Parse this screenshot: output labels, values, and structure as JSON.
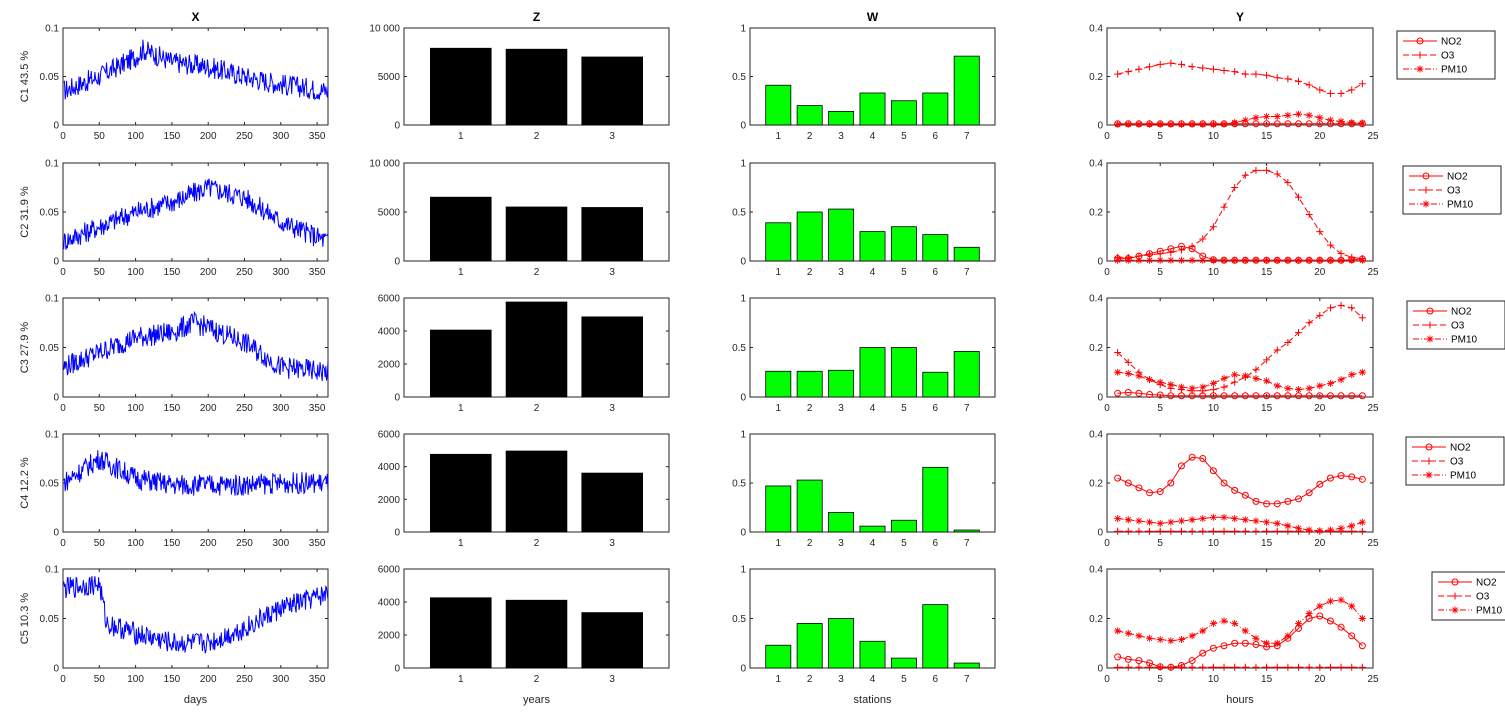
{
  "colors": {
    "time_series": "#0000ff",
    "years_bars": "#000000",
    "stations_bars": "#00ff00",
    "pollutants": "#ff0000"
  },
  "columns": [
    {
      "title": "X",
      "xlabel": "days"
    },
    {
      "title": "Z",
      "xlabel": "years"
    },
    {
      "title": "W",
      "xlabel": "stations"
    },
    {
      "title": "Y",
      "xlabel": "hours"
    }
  ],
  "rows": [
    {
      "ylabel": "C1 43.5 %"
    },
    {
      "ylabel": "C2 31.9 %"
    },
    {
      "ylabel": "C3 27.9 %"
    },
    {
      "ylabel": "C4 12.2 %"
    },
    {
      "ylabel": "C5 10.3 %"
    }
  ],
  "legend_labels": [
    "NO2",
    "O3",
    "PM10"
  ],
  "chart_data": [
    {
      "type": "line",
      "column": "X",
      "xlim": [
        0,
        365
      ],
      "xticks": [
        0,
        50,
        100,
        150,
        200,
        250,
        300,
        350
      ],
      "ylim": [
        0,
        0.1
      ],
      "yticks": [
        "0",
        "0.05",
        "0.1"
      ],
      "series_profile": [
        {
          "row": "C1",
          "x": [
            0,
            50,
            100,
            110,
            150,
            200,
            250,
            300,
            365
          ],
          "y": [
            0.035,
            0.05,
            0.07,
            0.078,
            0.065,
            0.06,
            0.05,
            0.042,
            0.035
          ]
        },
        {
          "row": "C2",
          "x": [
            0,
            50,
            100,
            150,
            200,
            250,
            300,
            365
          ],
          "y": [
            0.02,
            0.035,
            0.05,
            0.06,
            0.075,
            0.065,
            0.04,
            0.02
          ]
        },
        {
          "row": "C3",
          "x": [
            0,
            50,
            100,
            150,
            180,
            200,
            250,
            300,
            365
          ],
          "y": [
            0.03,
            0.045,
            0.06,
            0.065,
            0.075,
            0.07,
            0.055,
            0.03,
            0.025
          ]
        },
        {
          "row": "C4",
          "x": [
            0,
            50,
            100,
            150,
            200,
            250,
            300,
            365
          ],
          "y": [
            0.05,
            0.075,
            0.055,
            0.048,
            0.048,
            0.048,
            0.05,
            0.05
          ]
        },
        {
          "row": "C5",
          "x": [
            0,
            50,
            60,
            100,
            150,
            200,
            250,
            300,
            365
          ],
          "y": [
            0.08,
            0.085,
            0.045,
            0.035,
            0.025,
            0.025,
            0.04,
            0.06,
            0.075
          ]
        }
      ]
    },
    {
      "type": "bar",
      "column": "Z",
      "categories": [
        "1",
        "2",
        "3"
      ],
      "rows": [
        {
          "row": "C1",
          "ylim": [
            0,
            10000
          ],
          "yticks": [
            "0",
            "5000",
            "10 000"
          ],
          "values": [
            7900,
            7800,
            7000
          ]
        },
        {
          "row": "C2",
          "ylim": [
            0,
            10000
          ],
          "yticks": [
            "0",
            "5000",
            "10 000"
          ],
          "values": [
            6500,
            5500,
            5450
          ]
        },
        {
          "row": "C3",
          "ylim": [
            0,
            6000
          ],
          "yticks": [
            "0",
            "2000",
            "4000",
            "6000"
          ],
          "values": [
            4050,
            5750,
            4850
          ]
        },
        {
          "row": "C4",
          "ylim": [
            0,
            6000
          ],
          "yticks": [
            "0",
            "2000",
            "4000",
            "6000"
          ],
          "values": [
            4750,
            4950,
            3600
          ]
        },
        {
          "row": "C5",
          "ylim": [
            0,
            6000
          ],
          "yticks": [
            "0",
            "2000",
            "4000",
            "6000"
          ],
          "values": [
            4250,
            4100,
            3350
          ]
        }
      ]
    },
    {
      "type": "bar",
      "column": "W",
      "categories": [
        "1",
        "2",
        "3",
        "4",
        "5",
        "6",
        "7"
      ],
      "ylim": [
        0,
        1
      ],
      "yticks": [
        "0",
        "0.5",
        "1"
      ],
      "rows": [
        {
          "row": "C1",
          "values": [
            0.41,
            0.2,
            0.14,
            0.33,
            0.25,
            0.33,
            0.71
          ]
        },
        {
          "row": "C2",
          "values": [
            0.39,
            0.5,
            0.53,
            0.3,
            0.35,
            0.27,
            0.14
          ]
        },
        {
          "row": "C3",
          "values": [
            0.26,
            0.26,
            0.27,
            0.5,
            0.5,
            0.25,
            0.46
          ]
        },
        {
          "row": "C4",
          "values": [
            0.47,
            0.53,
            0.2,
            0.06,
            0.12,
            0.66,
            0.02
          ]
        },
        {
          "row": "C5",
          "values": [
            0.23,
            0.45,
            0.5,
            0.27,
            0.1,
            0.64,
            0.05
          ]
        }
      ]
    },
    {
      "type": "line",
      "column": "Y",
      "xlim": [
        0,
        25
      ],
      "xticks": [
        0,
        5,
        10,
        15,
        20,
        25
      ],
      "ylim": [
        0,
        0.4
      ],
      "yticks": [
        "0",
        "0.2",
        "0.4"
      ],
      "x": [
        1,
        2,
        3,
        4,
        5,
        6,
        7,
        8,
        9,
        10,
        11,
        12,
        13,
        14,
        15,
        16,
        17,
        18,
        19,
        20,
        21,
        22,
        23,
        24
      ],
      "rows": [
        {
          "row": "C1",
          "legend_position": "outside-top-right",
          "series": [
            {
              "name": "NO2",
              "values": [
                0.005,
                0.005,
                0.005,
                0.005,
                0.005,
                0.005,
                0.005,
                0.005,
                0.005,
                0.005,
                0.005,
                0.005,
                0.005,
                0.005,
                0.005,
                0.005,
                0.005,
                0.005,
                0.005,
                0.005,
                0.005,
                0.005,
                0.005,
                0.005
              ]
            },
            {
              "name": "O3",
              "values": [
                0.21,
                0.22,
                0.23,
                0.24,
                0.25,
                0.255,
                0.25,
                0.24,
                0.235,
                0.23,
                0.225,
                0.22,
                0.21,
                0.21,
                0.205,
                0.195,
                0.19,
                0.18,
                0.165,
                0.145,
                0.13,
                0.13,
                0.145,
                0.17
              ]
            },
            {
              "name": "PM10",
              "values": [
                0.003,
                0.003,
                0.003,
                0.003,
                0.003,
                0.003,
                0.003,
                0.003,
                0.003,
                0.003,
                0.003,
                0.01,
                0.02,
                0.03,
                0.035,
                0.035,
                0.04,
                0.045,
                0.04,
                0.03,
                0.02,
                0.015,
                0.01,
                0.008
              ]
            }
          ]
        },
        {
          "row": "C2",
          "legend_position": "outside-top-right",
          "series": [
            {
              "name": "NO2",
              "values": [
                0.01,
                0.01,
                0.02,
                0.03,
                0.04,
                0.05,
                0.06,
                0.05,
                0.02,
                0.005,
                0.003,
                0.003,
                0.003,
                0.003,
                0.003,
                0.003,
                0.003,
                0.003,
                0.003,
                0.003,
                0.003,
                0.003,
                0.005,
                0.008
              ]
            },
            {
              "name": "O3",
              "values": [
                0.015,
                0.015,
                0.02,
                0.025,
                0.03,
                0.035,
                0.045,
                0.06,
                0.09,
                0.14,
                0.22,
                0.3,
                0.35,
                0.37,
                0.37,
                0.355,
                0.32,
                0.26,
                0.19,
                0.12,
                0.065,
                0.03,
                0.015,
                0.01
              ]
            },
            {
              "name": "PM10",
              "values": [
                0.003,
                0.003,
                0.003,
                0.003,
                0.003,
                0.003,
                0.003,
                0.003,
                0.003,
                0.003,
                0.003,
                0.003,
                0.003,
                0.003,
                0.003,
                0.003,
                0.003,
                0.003,
                0.003,
                0.003,
                0.003,
                0.003,
                0.003,
                0.003
              ]
            }
          ]
        },
        {
          "row": "C3",
          "legend_position": "outside-top-right",
          "series": [
            {
              "name": "NO2",
              "values": [
                0.015,
                0.018,
                0.015,
                0.01,
                0.008,
                0.005,
                0.005,
                0.005,
                0.005,
                0.005,
                0.005,
                0.005,
                0.005,
                0.005,
                0.005,
                0.005,
                0.005,
                0.005,
                0.005,
                0.005,
                0.005,
                0.005,
                0.005,
                0.005
              ]
            },
            {
              "name": "O3",
              "values": [
                0.18,
                0.14,
                0.1,
                0.07,
                0.05,
                0.035,
                0.03,
                0.025,
                0.025,
                0.03,
                0.04,
                0.06,
                0.08,
                0.11,
                0.15,
                0.19,
                0.22,
                0.26,
                0.3,
                0.33,
                0.36,
                0.37,
                0.36,
                0.32
              ]
            },
            {
              "name": "PM10",
              "values": [
                0.1,
                0.095,
                0.085,
                0.07,
                0.06,
                0.05,
                0.04,
                0.035,
                0.04,
                0.055,
                0.075,
                0.09,
                0.085,
                0.075,
                0.065,
                0.045,
                0.035,
                0.03,
                0.035,
                0.045,
                0.055,
                0.07,
                0.09,
                0.1
              ]
            }
          ]
        },
        {
          "row": "C4",
          "legend_position": "outside-top-right",
          "series": [
            {
              "name": "NO2",
              "values": [
                0.22,
                0.2,
                0.18,
                0.16,
                0.165,
                0.2,
                0.27,
                0.305,
                0.3,
                0.25,
                0.2,
                0.17,
                0.15,
                0.125,
                0.115,
                0.115,
                0.125,
                0.135,
                0.16,
                0.195,
                0.22,
                0.23,
                0.225,
                0.215
              ]
            },
            {
              "name": "O3",
              "values": [
                0.003,
                0.003,
                0.003,
                0.003,
                0.003,
                0.003,
                0.003,
                0.003,
                0.003,
                0.003,
                0.003,
                0.003,
                0.003,
                0.003,
                0.003,
                0.003,
                0.003,
                0.003,
                0.003,
                0.003,
                0.003,
                0.003,
                0.003,
                0.003
              ]
            },
            {
              "name": "PM10",
              "values": [
                0.055,
                0.05,
                0.045,
                0.04,
                0.035,
                0.04,
                0.045,
                0.05,
                0.055,
                0.06,
                0.06,
                0.055,
                0.05,
                0.045,
                0.04,
                0.035,
                0.025,
                0.015,
                0.008,
                0.005,
                0.008,
                0.015,
                0.025,
                0.04
              ]
            }
          ]
        },
        {
          "row": "C5",
          "legend_position": "outside-top-right",
          "series": [
            {
              "name": "NO2",
              "values": [
                0.045,
                0.035,
                0.03,
                0.02,
                0.005,
                0.003,
                0.01,
                0.03,
                0.06,
                0.08,
                0.09,
                0.1,
                0.1,
                0.095,
                0.085,
                0.09,
                0.12,
                0.16,
                0.2,
                0.21,
                0.19,
                0.165,
                0.13,
                0.09
              ]
            },
            {
              "name": "O3",
              "values": [
                0.003,
                0.003,
                0.003,
                0.003,
                0.003,
                0.003,
                0.003,
                0.003,
                0.003,
                0.003,
                0.003,
                0.003,
                0.003,
                0.003,
                0.003,
                0.003,
                0.003,
                0.003,
                0.003,
                0.003,
                0.003,
                0.003,
                0.003,
                0.003
              ]
            },
            {
              "name": "PM10",
              "values": [
                0.15,
                0.14,
                0.13,
                0.12,
                0.115,
                0.11,
                0.115,
                0.13,
                0.15,
                0.18,
                0.19,
                0.18,
                0.15,
                0.12,
                0.1,
                0.1,
                0.13,
                0.18,
                0.22,
                0.25,
                0.27,
                0.275,
                0.25,
                0.2
              ]
            }
          ]
        }
      ]
    }
  ]
}
